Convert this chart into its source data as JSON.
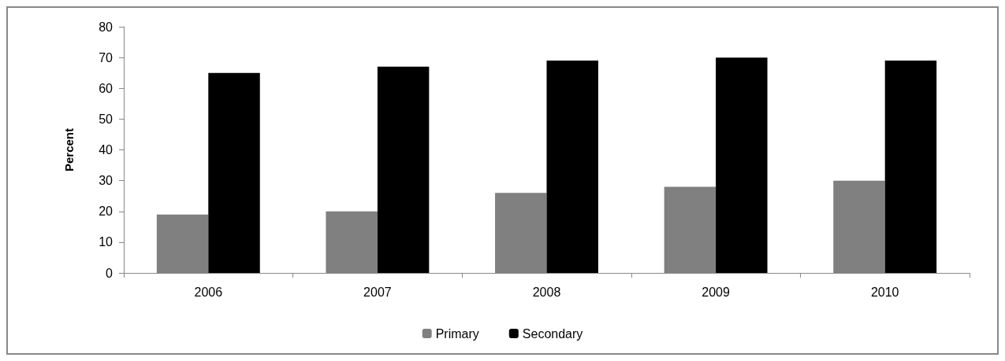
{
  "chart_data": {
    "type": "bar",
    "ylabel": "Percent",
    "categories": [
      "2006",
      "2007",
      "2008",
      "2009",
      "2010"
    ],
    "series": [
      {
        "name": "Primary",
        "color": "#808080",
        "values": [
          19,
          20,
          26,
          28,
          30
        ]
      },
      {
        "name": "Secondary",
        "color": "#000000",
        "values": [
          65,
          67,
          69,
          70,
          69
        ]
      }
    ],
    "ylim": [
      0,
      80
    ],
    "yticks": [
      0,
      10,
      20,
      30,
      40,
      50,
      60,
      70,
      80
    ],
    "grid": false,
    "legend": "bottom"
  }
}
